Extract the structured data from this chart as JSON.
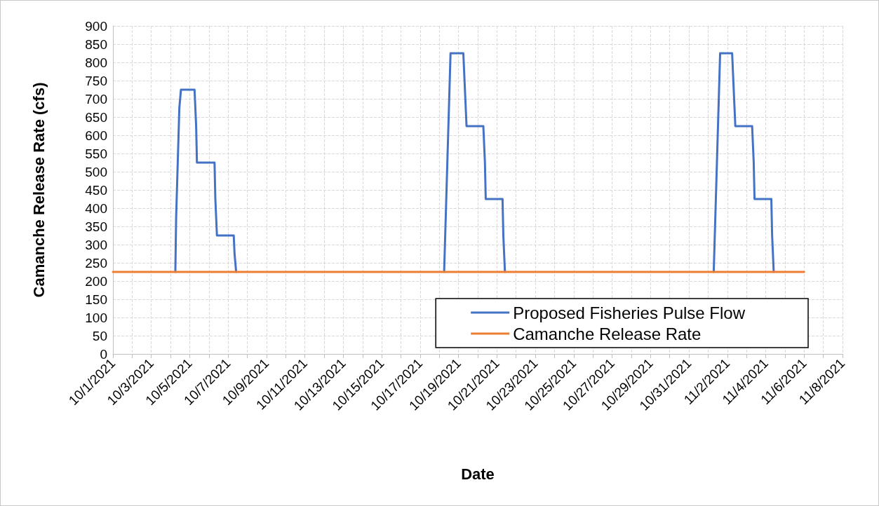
{
  "chart_data": {
    "type": "line",
    "xlabel": "Date",
    "ylabel": "Camanche Release Rate (cfs)",
    "xlim": [
      "2021-10-01",
      "2021-11-08"
    ],
    "xticks": [
      {
        "value": "2021-10-01",
        "label": "10/1/2021"
      },
      {
        "value": "2021-10-02",
        "label": null
      },
      {
        "value": "2021-10-03",
        "label": "10/3/2021"
      },
      {
        "value": "2021-10-04",
        "label": null
      },
      {
        "value": "2021-10-05",
        "label": "10/5/2021"
      },
      {
        "value": "2021-10-06",
        "label": null
      },
      {
        "value": "2021-10-07",
        "label": "10/7/2021"
      },
      {
        "value": "2021-10-08",
        "label": null
      },
      {
        "value": "2021-10-09",
        "label": "10/9/2021"
      },
      {
        "value": "2021-10-10",
        "label": null
      },
      {
        "value": "2021-10-11",
        "label": "10/11/2021"
      },
      {
        "value": "2021-10-12",
        "label": null
      },
      {
        "value": "2021-10-13",
        "label": "10/13/2021"
      },
      {
        "value": "2021-10-14",
        "label": null
      },
      {
        "value": "2021-10-15",
        "label": "10/15/2021"
      },
      {
        "value": "2021-10-16",
        "label": null
      },
      {
        "value": "2021-10-17",
        "label": "10/17/2021"
      },
      {
        "value": "2021-10-18",
        "label": null
      },
      {
        "value": "2021-10-19",
        "label": "10/19/2021"
      },
      {
        "value": "2021-10-20",
        "label": null
      },
      {
        "value": "2021-10-21",
        "label": "10/21/2021"
      },
      {
        "value": "2021-10-22",
        "label": null
      },
      {
        "value": "2021-10-23",
        "label": "10/23/2021"
      },
      {
        "value": "2021-10-24",
        "label": null
      },
      {
        "value": "2021-10-25",
        "label": "10/25/2021"
      },
      {
        "value": "2021-10-26",
        "label": null
      },
      {
        "value": "2021-10-27",
        "label": "10/27/2021"
      },
      {
        "value": "2021-10-28",
        "label": null
      },
      {
        "value": "2021-10-29",
        "label": "10/29/2021"
      },
      {
        "value": "2021-10-30",
        "label": null
      },
      {
        "value": "2021-10-31",
        "label": "10/31/2021"
      },
      {
        "value": "2021-11-01",
        "label": null
      },
      {
        "value": "2021-11-02",
        "label": "11/2/2021"
      },
      {
        "value": "2021-11-03",
        "label": null
      },
      {
        "value": "2021-11-04",
        "label": "11/4/2021"
      },
      {
        "value": "2021-11-05",
        "label": null
      },
      {
        "value": "2021-11-06",
        "label": "11/6/2021"
      },
      {
        "value": "2021-11-07",
        "label": null
      },
      {
        "value": "2021-11-08",
        "label": "11/8/2021"
      }
    ],
    "ylim": [
      0,
      900
    ],
    "yticks": [
      0,
      50,
      100,
      150,
      200,
      250,
      300,
      350,
      400,
      450,
      500,
      550,
      600,
      650,
      700,
      750,
      800,
      850,
      900
    ],
    "grid": true,
    "legend": "bottom right",
    "marker": "none",
    "line_style": "solid",
    "series": [
      {
        "name": "Proposed Fisheries Pulse Flow",
        "color": "#4472c4",
        "x": [
          "2021-10-04T06:00",
          "2021-10-04T07:00",
          "2021-10-04T09:00",
          "2021-10-04T11:00",
          "2021-10-04T13:00",
          "2021-10-05T06:00",
          "2021-10-05T08:00",
          "2021-10-05T09:00",
          "2021-10-06T07:00",
          "2021-10-06T08:00",
          "2021-10-06T10:00",
          "2021-10-07T07:00",
          "2021-10-07T08:00",
          "2021-10-07T10:00",
          "2021-10-12T00:00",
          "2021-10-18T06:00",
          "2021-10-18T08:00",
          "2021-10-18T10:00",
          "2021-10-18T12:00",
          "2021-10-18T14:00",
          "2021-10-19T06:00",
          "2021-10-19T08:00",
          "2021-10-19T10:00",
          "2021-10-20T07:00",
          "2021-10-20T09:00",
          "2021-10-20T10:00",
          "2021-10-21T07:00",
          "2021-10-21T08:00",
          "2021-10-21T10:00",
          "2021-10-26T00:00",
          "2021-11-01T07:00",
          "2021-11-01T09:00",
          "2021-11-01T11:00",
          "2021-11-01T13:00",
          "2021-11-01T15:00",
          "2021-11-02T06:00",
          "2021-11-02T08:00",
          "2021-11-02T10:00",
          "2021-11-03T07:00",
          "2021-11-03T09:00",
          "2021-11-03T10:00",
          "2021-11-04T07:00",
          "2021-11-04T08:00",
          "2021-11-04T10:00"
        ],
        "values": [
          225,
          375,
          525,
          675,
          725,
          725,
          625,
          525,
          525,
          425,
          325,
          325,
          275,
          225,
          null,
          225,
          375,
          525,
          675,
          825,
          825,
          725,
          625,
          625,
          525,
          425,
          425,
          325,
          225,
          null,
          225,
          375,
          525,
          675,
          825,
          825,
          725,
          625,
          625,
          525,
          425,
          425,
          325,
          225
        ]
      },
      {
        "name": "Camanche Release Rate",
        "color": "#ed7d31",
        "x": [
          "2021-10-01",
          "2021-11-06"
        ],
        "values": [
          225,
          225
        ]
      }
    ]
  }
}
